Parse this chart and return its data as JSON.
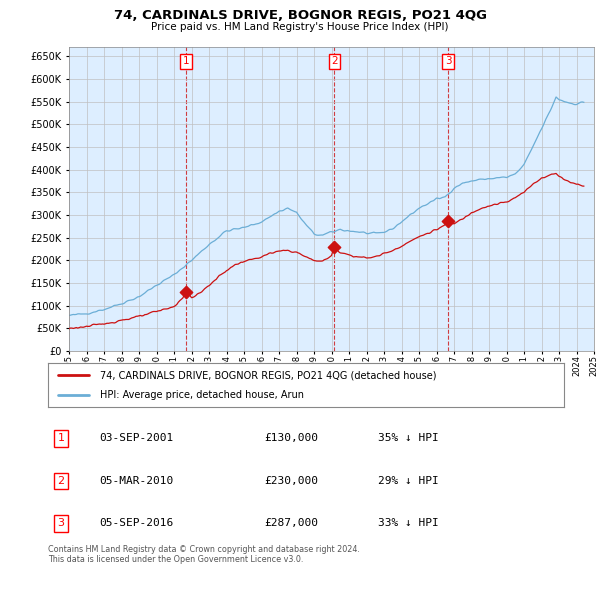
{
  "title": "74, CARDINALS DRIVE, BOGNOR REGIS, PO21 4QG",
  "subtitle": "Price paid vs. HM Land Registry's House Price Index (HPI)",
  "ylim": [
    0,
    670000
  ],
  "yticks": [
    0,
    50000,
    100000,
    150000,
    200000,
    250000,
    300000,
    350000,
    400000,
    450000,
    500000,
    550000,
    600000,
    650000
  ],
  "line_color_hpi": "#6baed6",
  "line_color_price": "#cc1111",
  "vline_color": "#cc1111",
  "grid_color": "#c0c0c0",
  "bg_color": "#ddeeff",
  "plot_bg": "#ddeeff",
  "legend_label_price": "74, CARDINALS DRIVE, BOGNOR REGIS, PO21 4QG (detached house)",
  "legend_label_hpi": "HPI: Average price, detached house, Arun",
  "transactions": [
    {
      "num": 1,
      "date": "03-SEP-2001",
      "price": 130000,
      "pct": "35%",
      "direction": "↓",
      "x_year": 2001.67,
      "y_val": 130000
    },
    {
      "num": 2,
      "date": "05-MAR-2010",
      "price": 230000,
      "pct": "29%",
      "direction": "↓",
      "x_year": 2010.17,
      "y_val": 230000
    },
    {
      "num": 3,
      "date": "05-SEP-2016",
      "price": 287000,
      "pct": "33%",
      "direction": "↓",
      "x_year": 2016.67,
      "y_val": 287000
    }
  ],
  "footer": "Contains HM Land Registry data © Crown copyright and database right 2024.\nThis data is licensed under the Open Government Licence v3.0.",
  "xtick_years": [
    1995,
    1996,
    1997,
    1998,
    1999,
    2000,
    2001,
    2002,
    2003,
    2004,
    2005,
    2006,
    2007,
    2008,
    2009,
    2010,
    2011,
    2012,
    2013,
    2014,
    2015,
    2016,
    2017,
    2018,
    2019,
    2020,
    2021,
    2022,
    2023,
    2024,
    2025
  ]
}
